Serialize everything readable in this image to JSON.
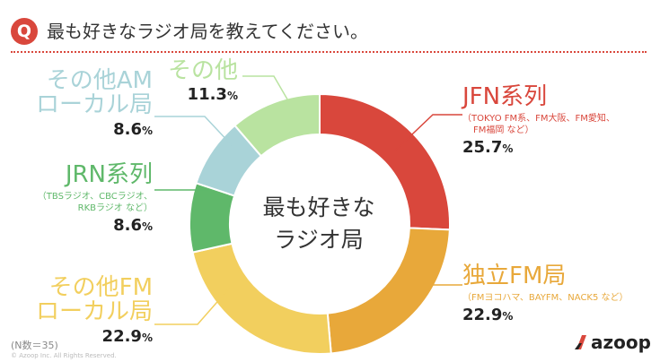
{
  "header": {
    "badge": "Q",
    "question": "最も好きなラジオ局を教えてください。"
  },
  "footer": {
    "note": "(N数＝35)",
    "copyright": "© Azoop Inc. All Rights Reserved.",
    "logo_text": "azoop"
  },
  "chart_data": {
    "type": "pie",
    "center_label_lines": [
      "最も好きな",
      "ラジオ局"
    ],
    "categories": [
      "JFN系列",
      "独立FM局",
      "その他FMローカル局",
      "JRN系列",
      "その他AMローカル局",
      "その他"
    ],
    "values": [
      25.7,
      22.9,
      22.9,
      8.6,
      8.6,
      11.3
    ],
    "colors": [
      "#d9473c",
      "#e8a83a",
      "#f2cf5e",
      "#5fb86a",
      "#a9d3d8",
      "#b9e3a0"
    ],
    "labels": [
      {
        "name_lines": [
          "JFN系列"
        ],
        "sub_lines": [
          "（TOKYO FM系、FM大阪、FM愛知、",
          "FM福岡 など）"
        ],
        "pct": "25.7",
        "unit": "%",
        "color": "#d9473c"
      },
      {
        "name_lines": [
          "独立FM局"
        ],
        "sub_lines": [
          "（FMヨコハマ、BAYFM、NACK5 など）"
        ],
        "pct": "22.9",
        "unit": "%",
        "color": "#e8a83a"
      },
      {
        "name_lines": [
          "その他FM",
          "ローカル局"
        ],
        "sub_lines": [],
        "pct": "22.9",
        "unit": "%",
        "color": "#f2cf5e"
      },
      {
        "name_lines": [
          "JRN系列"
        ],
        "sub_lines": [
          "（TBSラジオ、CBCラジオ、",
          "RKBラジオ など）"
        ],
        "pct": "8.6",
        "unit": "%",
        "color": "#5fb86a"
      },
      {
        "name_lines": [
          "その他AM",
          "ローカル局"
        ],
        "sub_lines": [],
        "pct": "8.6",
        "unit": "%",
        "color": "#a9d3d8"
      },
      {
        "name_lines": [
          "その他"
        ],
        "sub_lines": [],
        "pct": "11.3",
        "unit": "%",
        "color": "#b9e3a0"
      }
    ]
  }
}
